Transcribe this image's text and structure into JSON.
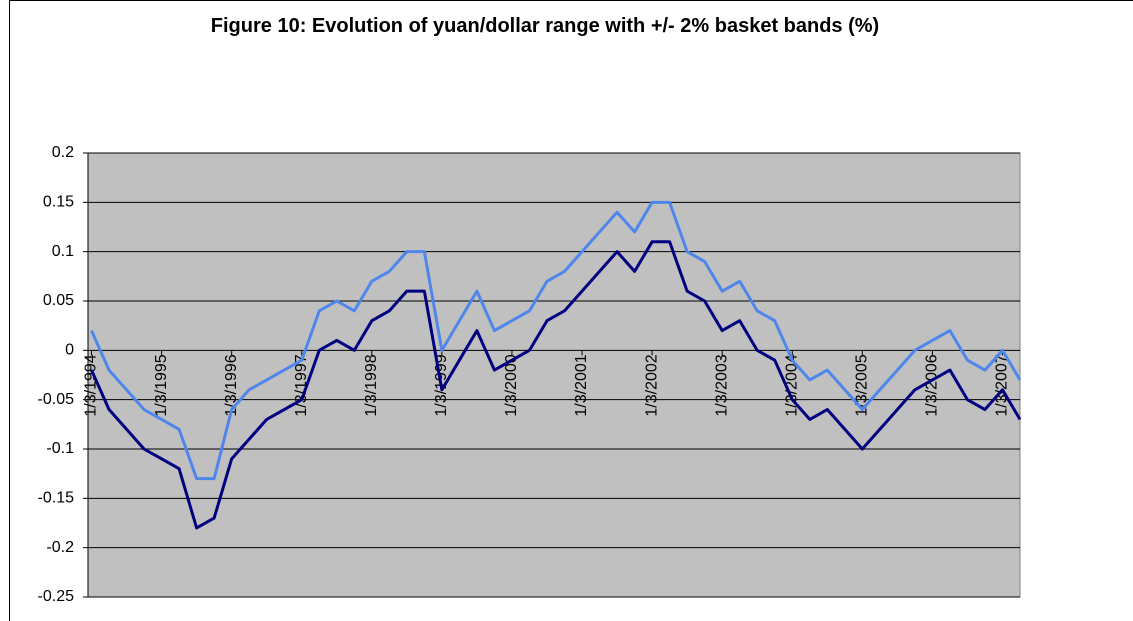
{
  "chart_data": {
    "type": "line",
    "title": "Figure 10: Evolution of yuan/dollar range with +/- 2% basket bands (%)",
    "x": [
      1994,
      1994.25,
      1994.5,
      1994.75,
      1995,
      1995.25,
      1995.5,
      1995.75,
      1996,
      1996.25,
      1996.5,
      1996.75,
      1997,
      1997.25,
      1997.5,
      1997.75,
      1998,
      1998.25,
      1998.5,
      1998.75,
      1999,
      1999.25,
      1999.5,
      1999.75,
      2000,
      2000.25,
      2000.5,
      2000.75,
      2001,
      2001.25,
      2001.5,
      2001.75,
      2002,
      2002.25,
      2002.5,
      2002.75,
      2003,
      2003.25,
      2003.5,
      2003.75,
      2004,
      2004.25,
      2004.5,
      2004.75,
      2005,
      2005.25,
      2005.5,
      2005.75,
      2006,
      2006.25,
      2006.5,
      2006.75,
      2007,
      2007.25
    ],
    "series": [
      {
        "color": "#4f86ec",
        "values": [
          0.02,
          -0.02,
          -0.04,
          -0.06,
          -0.07,
          -0.08,
          -0.13,
          -0.13,
          -0.06,
          -0.04,
          -0.03,
          -0.02,
          -0.01,
          0.04,
          0.05,
          0.04,
          0.07,
          0.08,
          0.1,
          0.1,
          0.0,
          0.03,
          0.06,
          0.02,
          0.03,
          0.04,
          0.07,
          0.08,
          0.1,
          0.12,
          0.14,
          0.12,
          0.15,
          0.15,
          0.1,
          0.09,
          0.06,
          0.07,
          0.04,
          0.03,
          -0.01,
          -0.03,
          -0.02,
          -0.04,
          -0.06,
          -0.04,
          -0.02,
          0.0,
          0.01,
          0.02,
          -0.01,
          -0.02,
          0.0,
          -0.03
        ]
      },
      {
        "color": "#000080",
        "values": [
          -0.02,
          -0.06,
          -0.08,
          -0.1,
          -0.11,
          -0.12,
          -0.18,
          -0.17,
          -0.11,
          -0.09,
          -0.07,
          -0.06,
          -0.05,
          0.0,
          0.01,
          0.0,
          0.03,
          0.04,
          0.06,
          0.06,
          -0.04,
          -0.01,
          0.02,
          -0.02,
          -0.01,
          0.0,
          0.03,
          0.04,
          0.06,
          0.08,
          0.1,
          0.08,
          0.11,
          0.11,
          0.06,
          0.05,
          0.02,
          0.03,
          0.0,
          -0.01,
          -0.05,
          -0.07,
          -0.06,
          -0.08,
          -0.1,
          -0.08,
          -0.06,
          -0.04,
          -0.03,
          -0.02,
          -0.05,
          -0.06,
          -0.04,
          -0.07
        ]
      }
    ],
    "xlim": [
      1993.95,
      2007.25
    ],
    "xticks": [
      {
        "value": 1994,
        "label": "1/3/1994"
      },
      {
        "value": 1995,
        "label": "1/3/1995"
      },
      {
        "value": 1996,
        "label": "1/3/1996"
      },
      {
        "value": 1997,
        "label": "1/3/1997"
      },
      {
        "value": 1998,
        "label": "1/3/1998"
      },
      {
        "value": 1999,
        "label": "1/3/1999"
      },
      {
        "value": 2000,
        "label": "1/3/2000"
      },
      {
        "value": 2001,
        "label": "1/3/2001"
      },
      {
        "value": 2002,
        "label": "1/3/2002"
      },
      {
        "value": 2003,
        "label": "1/3/2003"
      },
      {
        "value": 2004,
        "label": "1/3/2004"
      },
      {
        "value": 2005,
        "label": "1/3/2005"
      },
      {
        "value": 2006,
        "label": "1/3/2006"
      },
      {
        "value": 2007,
        "label": "1/3/2007"
      }
    ],
    "ylim": [
      -0.25,
      0.2
    ],
    "yticks": [
      0.2,
      0.15,
      0.1,
      0.05,
      0,
      -0.05,
      -0.1,
      -0.15,
      -0.2,
      -0.25
    ],
    "grid": true
  }
}
